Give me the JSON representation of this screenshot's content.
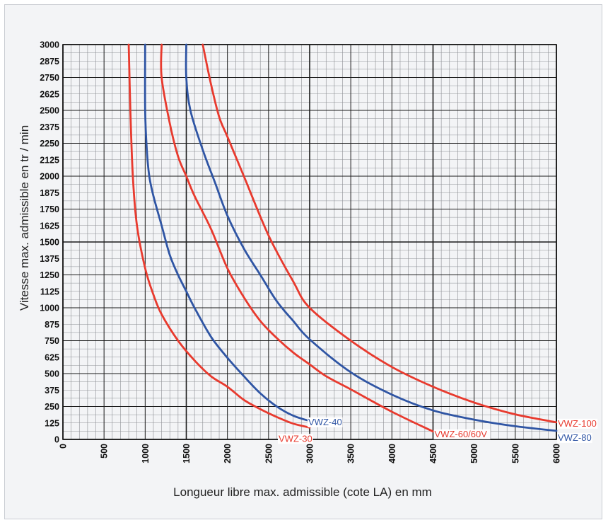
{
  "chart_data": {
    "type": "line",
    "xlabel": "Longueur libre max. admissible (cote LA) en mm",
    "ylabel": "Vitesse max. admissible en tr / min",
    "xlim": [
      0,
      6000
    ],
    "ylim": [
      0,
      3000
    ],
    "x_ticks": [
      "0",
      "500",
      "1000",
      "1500",
      "2000",
      "2500",
      "3000",
      "3500",
      "4000",
      "4500",
      "5000",
      "5500",
      "6000"
    ],
    "y_ticks": [
      "0",
      "125",
      "250",
      "375",
      "500",
      "625",
      "750",
      "875",
      "1000",
      "1125",
      "1250",
      "1375",
      "1500",
      "1625",
      "1750",
      "1875",
      "2000",
      "2125",
      "2250",
      "2375",
      "2500",
      "2625",
      "2750",
      "2875",
      "3000"
    ],
    "grid": true,
    "series": [
      {
        "name": "VWZ-30",
        "color": "#e83a2e",
        "points": [
          [
            800,
            3000
          ],
          [
            820,
            2500
          ],
          [
            850,
            2000
          ],
          [
            900,
            1625
          ],
          [
            1000,
            1300
          ],
          [
            1100,
            1100
          ],
          [
            1200,
            950
          ],
          [
            1400,
            750
          ],
          [
            1600,
            600
          ],
          [
            1800,
            480
          ],
          [
            2000,
            400
          ],
          [
            2200,
            300
          ],
          [
            2400,
            230
          ],
          [
            2600,
            170
          ],
          [
            2800,
            120
          ],
          [
            3000,
            90
          ]
        ]
      },
      {
        "name": "VWZ-40",
        "color": "#2f55a4",
        "points": [
          [
            1000,
            3000
          ],
          [
            1000,
            2500
          ],
          [
            1020,
            2200
          ],
          [
            1050,
            2000
          ],
          [
            1100,
            1850
          ],
          [
            1200,
            1625
          ],
          [
            1300,
            1400
          ],
          [
            1400,
            1250
          ],
          [
            1500,
            1125
          ],
          [
            1600,
            1000
          ],
          [
            1800,
            780
          ],
          [
            2000,
            620
          ],
          [
            2200,
            480
          ],
          [
            2400,
            350
          ],
          [
            2600,
            250
          ],
          [
            2800,
            180
          ],
          [
            3000,
            140
          ]
        ]
      },
      {
        "name": "VWZ-60/60V",
        "color": "#e83a2e",
        "points": [
          [
            1200,
            3000
          ],
          [
            1200,
            2750
          ],
          [
            1300,
            2400
          ],
          [
            1400,
            2150
          ],
          [
            1500,
            2000
          ],
          [
            1600,
            1850
          ],
          [
            1800,
            1600
          ],
          [
            2000,
            1300
          ],
          [
            2200,
            1080
          ],
          [
            2400,
            900
          ],
          [
            2600,
            770
          ],
          [
            2800,
            660
          ],
          [
            3000,
            570
          ],
          [
            3200,
            480
          ],
          [
            3500,
            380
          ],
          [
            4000,
            210
          ],
          [
            4500,
            60
          ]
        ]
      },
      {
        "name": "VWZ-80",
        "color": "#2f55a4",
        "points": [
          [
            1500,
            3000
          ],
          [
            1500,
            2750
          ],
          [
            1550,
            2500
          ],
          [
            1700,
            2200
          ],
          [
            1850,
            1950
          ],
          [
            2000,
            1700
          ],
          [
            2200,
            1450
          ],
          [
            2400,
            1250
          ],
          [
            2600,
            1050
          ],
          [
            2800,
            900
          ],
          [
            3000,
            760
          ],
          [
            3500,
            510
          ],
          [
            4000,
            340
          ],
          [
            4500,
            220
          ],
          [
            5000,
            150
          ],
          [
            5500,
            100
          ],
          [
            6000,
            65
          ]
        ]
      },
      {
        "name": "VWZ-100",
        "color": "#e83a2e",
        "points": [
          [
            1700,
            3000
          ],
          [
            1800,
            2700
          ],
          [
            1900,
            2450
          ],
          [
            2000,
            2300
          ],
          [
            2200,
            2000
          ],
          [
            2500,
            1550
          ],
          [
            2800,
            1200
          ],
          [
            3000,
            1000
          ],
          [
            3500,
            750
          ],
          [
            4000,
            550
          ],
          [
            4500,
            400
          ],
          [
            5000,
            280
          ],
          [
            5500,
            190
          ],
          [
            6000,
            130
          ]
        ]
      }
    ]
  }
}
